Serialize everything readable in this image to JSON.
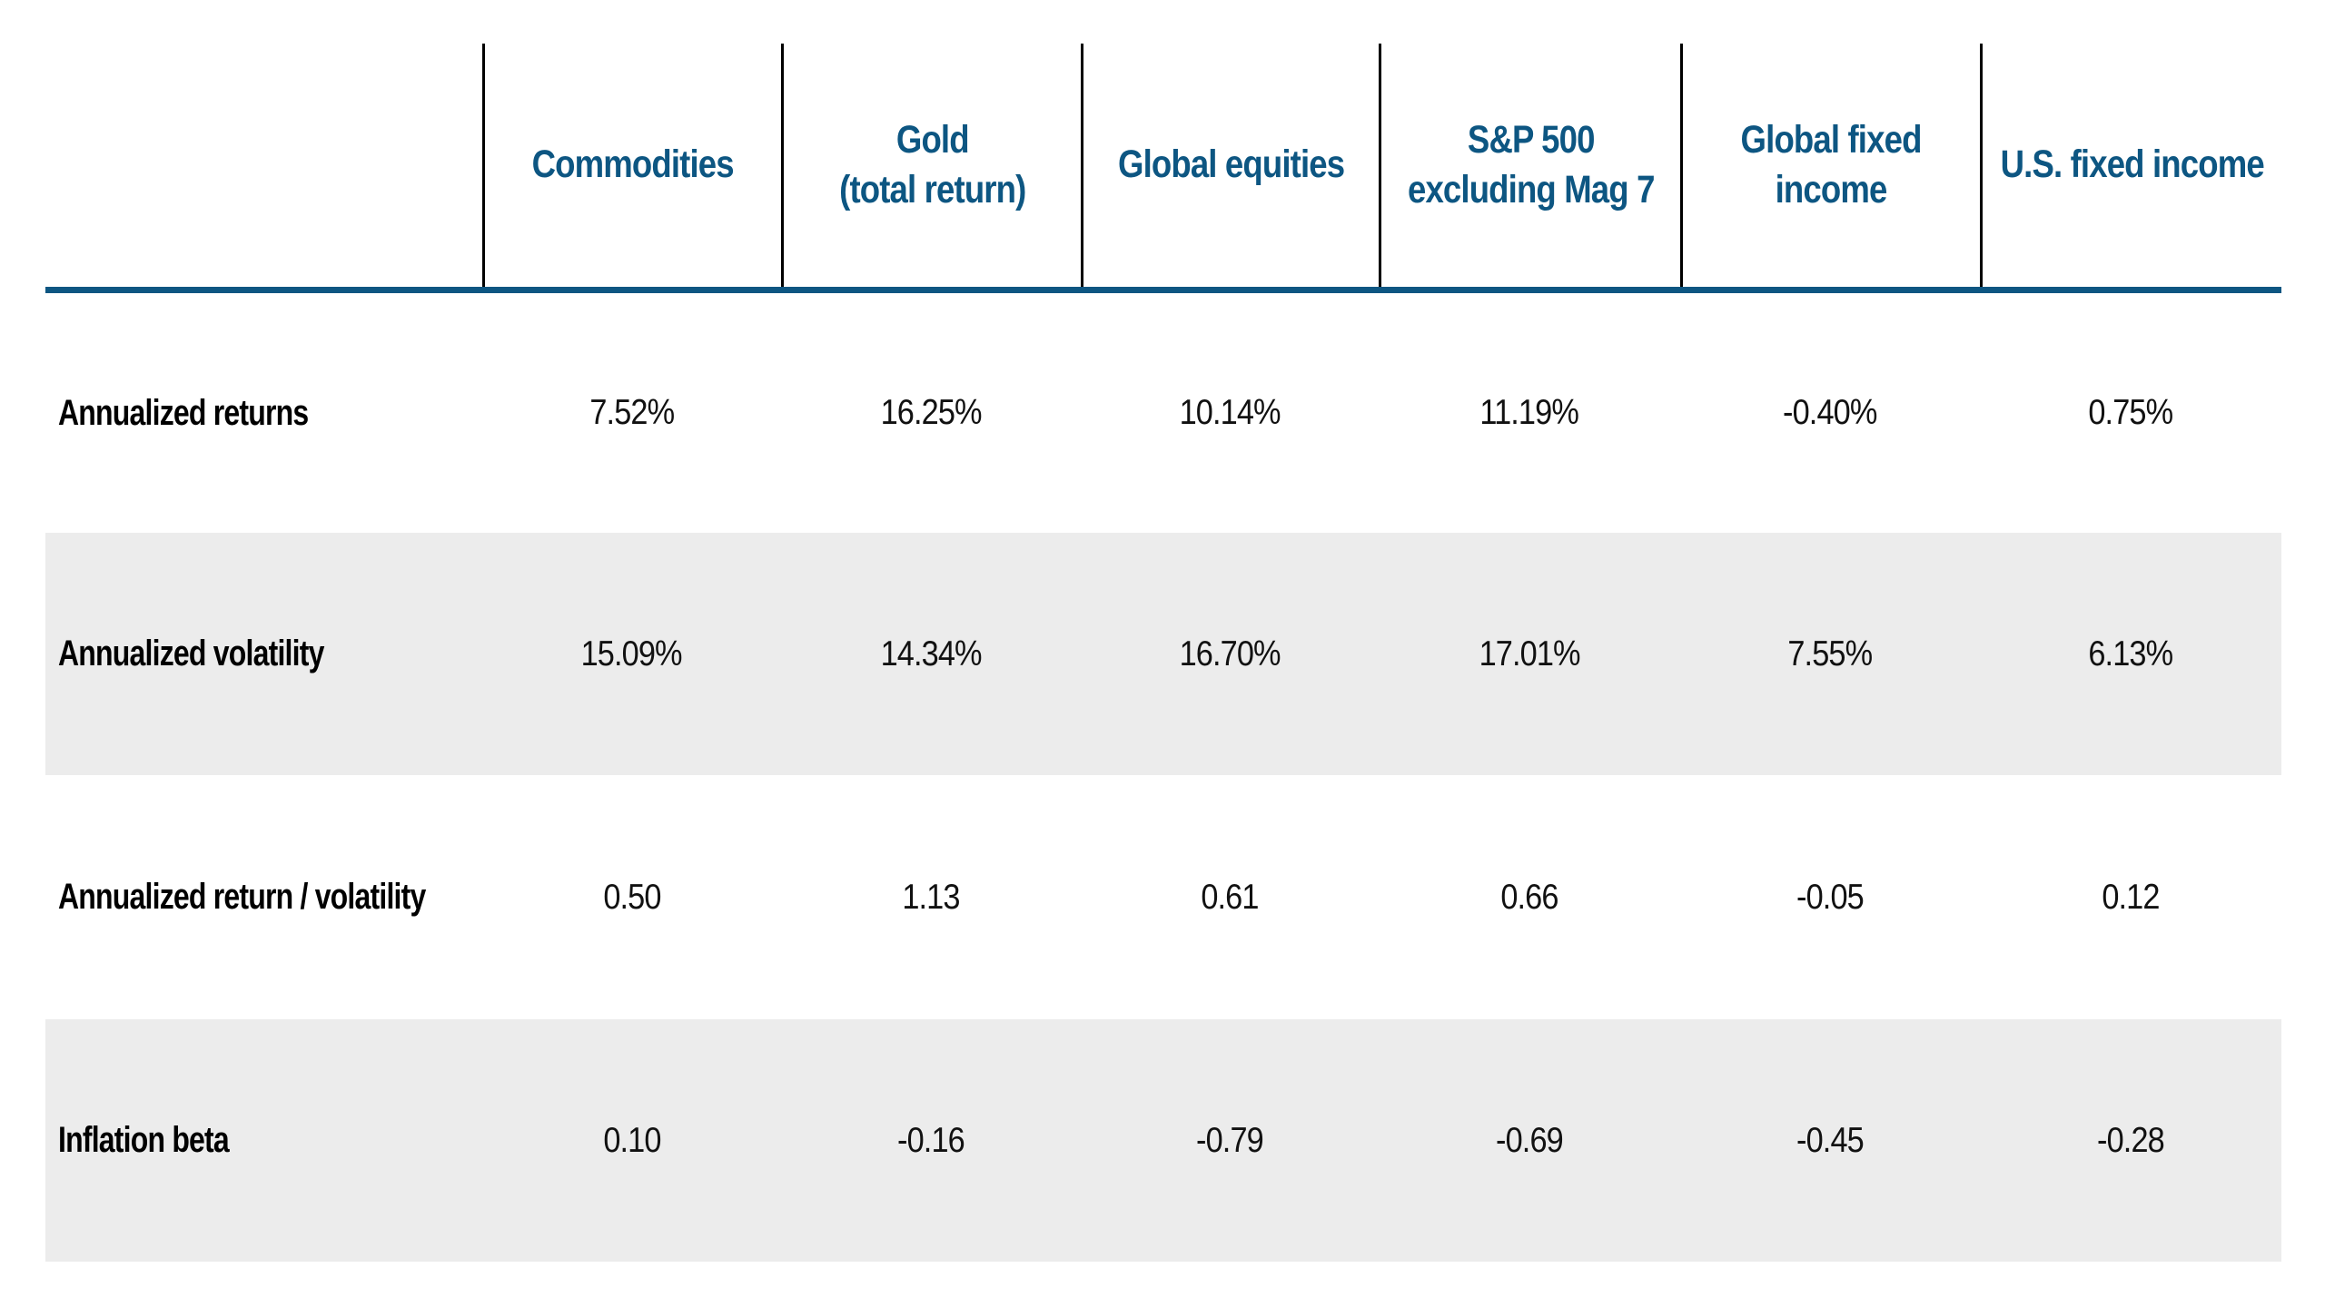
{
  "chart_data": {
    "type": "table",
    "columns": [
      "Commodities",
      "Gold\n(total return)",
      "Global equities",
      "S&P 500\nexcluding Mag 7",
      "Global fixed\nincome",
      "U.S. fixed income"
    ],
    "rows": [
      {
        "label": "Annualized returns",
        "values": [
          "7.52%",
          "16.25%",
          "10.14%",
          "11.19%",
          "-0.40%",
          "0.75%"
        ]
      },
      {
        "label": "Annualized volatility",
        "values": [
          "15.09%",
          "14.34%",
          "16.70%",
          "17.01%",
          "7.55%",
          "6.13%"
        ]
      },
      {
        "label": "Annualized return / volatility",
        "values": [
          "0.50",
          "1.13",
          "0.61",
          "0.66",
          "-0.05",
          "0.12"
        ]
      },
      {
        "label": "Inflation beta",
        "values": [
          "0.10",
          "-0.16",
          "-0.79",
          "-0.69",
          "-0.45",
          "-0.28"
        ]
      }
    ],
    "layout": {
      "stripe_rows": [
        "Annualized volatility",
        "Inflation beta"
      ],
      "header_divider": "thick horizontal rule under header",
      "column_dividers": "thin vertical rules in header area only"
    }
  },
  "colors": {
    "header_text": "#0d5682",
    "header_rule": "#0d5682",
    "row_stripe": "#ececec",
    "column_divider": "#000000",
    "body_text": "#111111",
    "label_text": "#000000",
    "background": "#ffffff"
  }
}
